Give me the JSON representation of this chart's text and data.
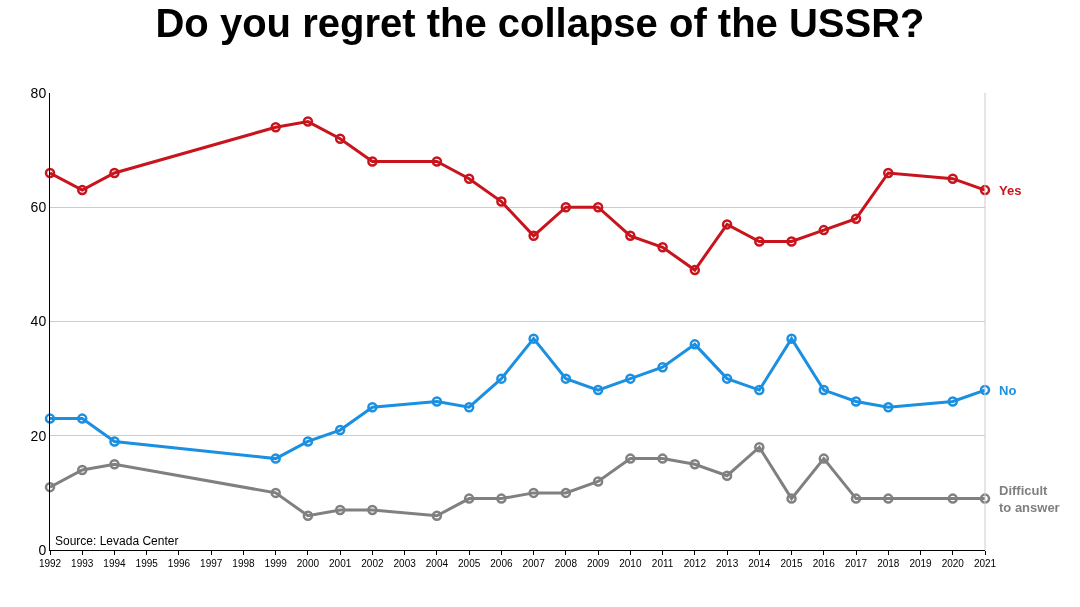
{
  "chart_data": {
    "type": "line",
    "title": "Do you regret the collapse of the USSR?",
    "x": [
      1992,
      1993,
      1994,
      1999,
      2000,
      2001,
      2002,
      2004,
      2005,
      2006,
      2007,
      2008,
      2009,
      2010,
      2011,
      2012,
      2013,
      2014,
      2015,
      2016,
      2017,
      2018,
      2020,
      2021
    ],
    "series": [
      {
        "name": "Yes",
        "color": "#c8141c",
        "values": [
          66,
          63,
          66,
          74,
          75,
          72,
          68,
          68,
          65,
          61,
          55,
          60,
          60,
          55,
          53,
          49,
          57,
          54,
          54,
          56,
          58,
          66,
          65,
          63
        ]
      },
      {
        "name": "No",
        "color": "#1b8fe0",
        "values": [
          23,
          23,
          19,
          16,
          19,
          21,
          25,
          26,
          25,
          30,
          37,
          30,
          28,
          30,
          32,
          36,
          30,
          28,
          37,
          28,
          26,
          25,
          26,
          28
        ]
      },
      {
        "name": "Difficult to answer",
        "color": "#808080",
        "values": [
          11,
          14,
          15,
          10,
          6,
          7,
          7,
          6,
          9,
          9,
          10,
          10,
          12,
          16,
          16,
          15,
          13,
          18,
          9,
          16,
          9,
          9,
          9,
          9
        ]
      }
    ],
    "xlim": [
      1992,
      2021
    ],
    "xticks": [
      1992,
      1993,
      1994,
      1995,
      1996,
      1997,
      1998,
      1999,
      2000,
      2001,
      2002,
      2003,
      2004,
      2005,
      2006,
      2007,
      2008,
      2009,
      2010,
      2011,
      2012,
      2013,
      2014,
      2015,
      2016,
      2017,
      2018,
      2019,
      2020,
      2021
    ],
    "ylim": [
      0,
      80
    ],
    "yticks": [
      0,
      20,
      40,
      60,
      80
    ],
    "grid": "y",
    "legend": false,
    "marker": "circle",
    "line_style": "solid",
    "annotations": [
      "Source: Levada Center"
    ]
  }
}
